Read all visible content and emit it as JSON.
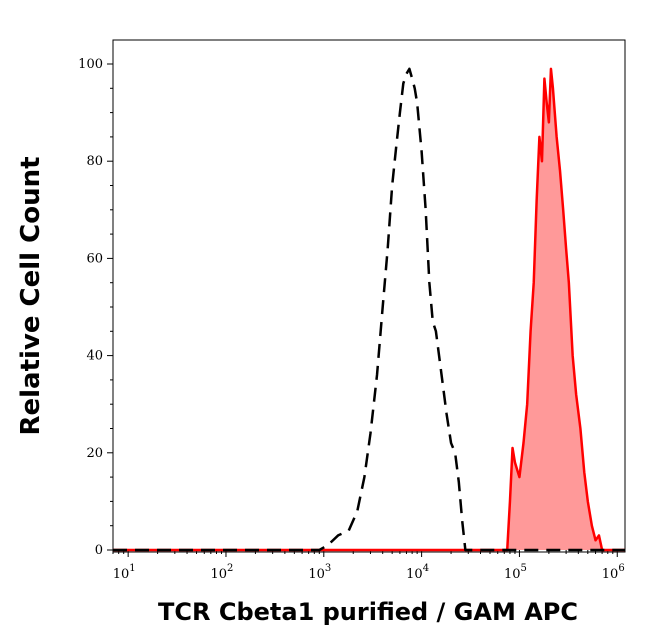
{
  "chart_data": {
    "type": "area",
    "xlabel": "TCR Cbeta1 purified / GAM APC",
    "ylabel": "Relative Cell Count",
    "x_scale": "log",
    "xlim": [
      7,
      1200000
    ],
    "ylim": [
      0,
      100
    ],
    "x_ticks": [
      {
        "base": "10",
        "exp": "1",
        "value": 10
      },
      {
        "base": "10",
        "exp": "2",
        "value": 100
      },
      {
        "base": "10",
        "exp": "3",
        "value": 1000
      },
      {
        "base": "10",
        "exp": "4",
        "value": 10000
      },
      {
        "base": "10",
        "exp": "5",
        "value": 100000
      },
      {
        "base": "10",
        "exp": "6",
        "value": 1000000
      }
    ],
    "y_ticks": [
      "0",
      "20",
      "40",
      "60",
      "80",
      "100"
    ],
    "colors": {
      "negative": "#000000",
      "positive_line": "#ff0000",
      "positive_fill": "#ff9999"
    },
    "series": [
      {
        "style": "dashed-black-outline",
        "x": [
          7,
          900,
          1100,
          1400,
          1800,
          2200,
          2600,
          3000,
          3500,
          4000,
          4500,
          5000,
          5500,
          6000,
          6500,
          7000,
          7500,
          8000,
          8500,
          9000,
          10000,
          11000,
          12000,
          13000,
          14000,
          16000,
          18000,
          20000,
          22000,
          24000,
          26000,
          28000,
          1200000
        ],
        "values": [
          0,
          0,
          1,
          3,
          4,
          8,
          15,
          24,
          36,
          50,
          62,
          75,
          83,
          90,
          96,
          98,
          99,
          97,
          95,
          92,
          82,
          70,
          55,
          47,
          45,
          36,
          28,
          22,
          20,
          14,
          6,
          0,
          0
        ]
      },
      {
        "style": "red-filled",
        "x": [
          7,
          75000,
          80000,
          85000,
          90000,
          100000,
          110000,
          120000,
          130000,
          140000,
          150000,
          160000,
          170000,
          180000,
          190000,
          200000,
          210000,
          220000,
          240000,
          260000,
          280000,
          300000,
          320000,
          350000,
          380000,
          420000,
          460000,
          500000,
          550000,
          600000,
          650000,
          700000,
          1200000
        ],
        "values": [
          0,
          0,
          10,
          21,
          18,
          15,
          22,
          30,
          45,
          55,
          72,
          85,
          80,
          97,
          92,
          88,
          99,
          95,
          85,
          78,
          70,
          62,
          55,
          40,
          32,
          25,
          16,
          10,
          5,
          2,
          3,
          0,
          0
        ]
      }
    ]
  }
}
